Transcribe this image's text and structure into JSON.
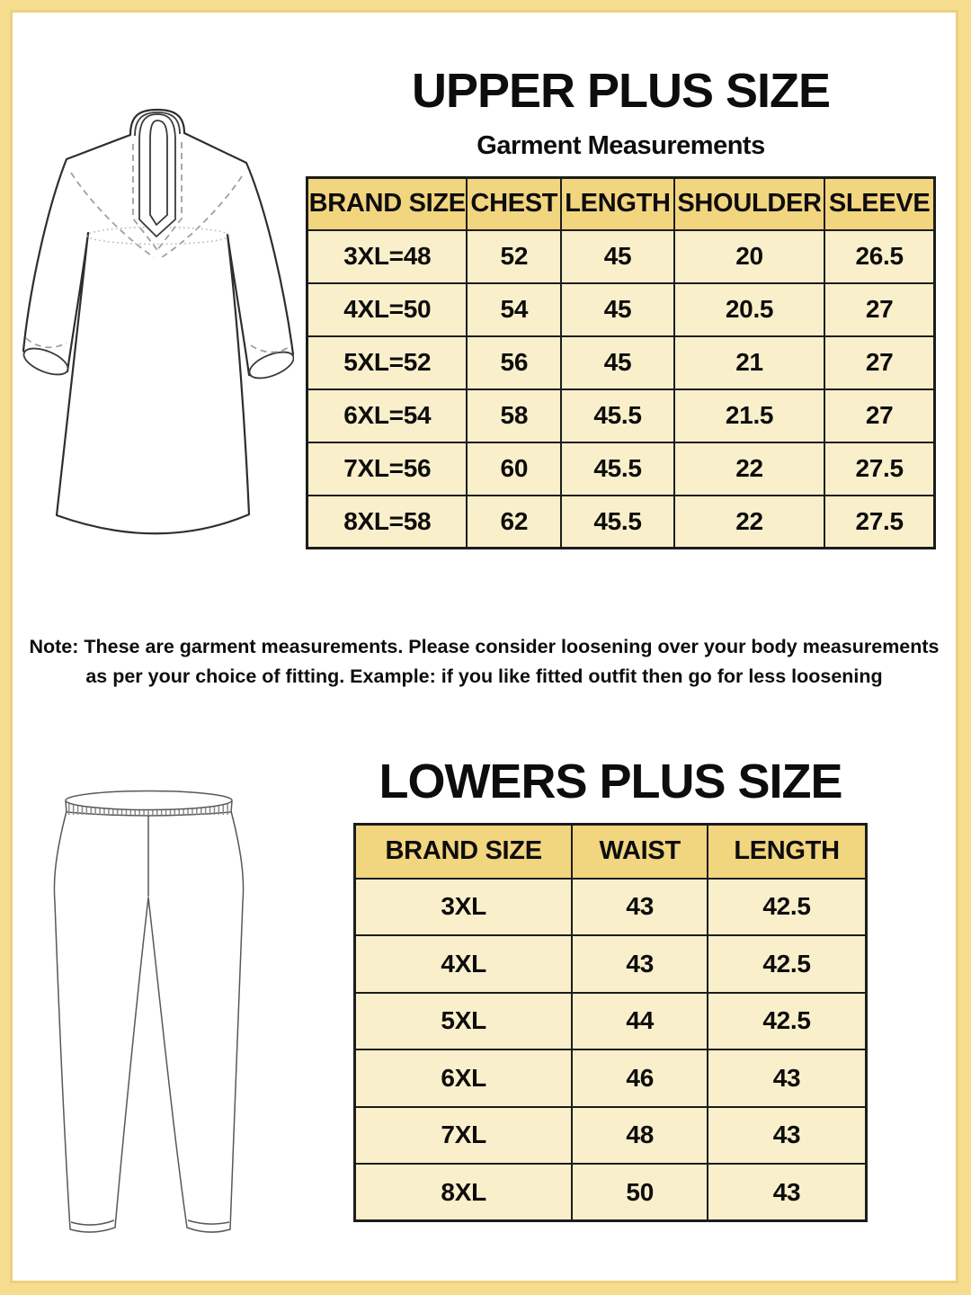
{
  "upper": {
    "title": "UPPER PLUS SIZE",
    "subtitle": "Garment Measurements",
    "illustration": "kurta-line-drawing",
    "table": {
      "headers": [
        "BRAND SIZE",
        "CHEST",
        "LENGTH",
        "SHOULDER",
        "SLEEVE"
      ],
      "rows": [
        [
          "3XL=48",
          "52",
          "45",
          "20",
          "26.5"
        ],
        [
          "4XL=50",
          "54",
          "45",
          "20.5",
          "27"
        ],
        [
          "5XL=52",
          "56",
          "45",
          "21",
          "27"
        ],
        [
          "6XL=54",
          "58",
          "45.5",
          "21.5",
          "27"
        ],
        [
          "7XL=56",
          "60",
          "45.5",
          "22",
          "27.5"
        ],
        [
          "8XL=58",
          "62",
          "45.5",
          "22",
          "27.5"
        ]
      ]
    }
  },
  "note": {
    "line1": "Note: These are garment measurements. Please consider loosening over your body measurements",
    "line2": "as per your choice of fitting. Example: if you like fitted outfit then go for less loosening"
  },
  "lower": {
    "title": "LOWERS PLUS SIZE",
    "illustration": "leggings-line-drawing",
    "table": {
      "headers": [
        "BRAND SIZE",
        "WAIST",
        "LENGTH"
      ],
      "rows": [
        [
          "3XL",
          "43",
          "42.5"
        ],
        [
          "4XL",
          "43",
          "42.5"
        ],
        [
          "5XL",
          "44",
          "42.5"
        ],
        [
          "6XL",
          "46",
          "43"
        ],
        [
          "7XL",
          "48",
          "43"
        ],
        [
          "8XL",
          "50",
          "43"
        ]
      ]
    }
  },
  "colors": {
    "frame": "#f6dd8e",
    "frame_edge": "#ecd07c",
    "header_cell": "#f2d57f",
    "data_cell": "#f9efcb",
    "table_border": "#1c1c1c",
    "text": "#0d0d0d"
  }
}
